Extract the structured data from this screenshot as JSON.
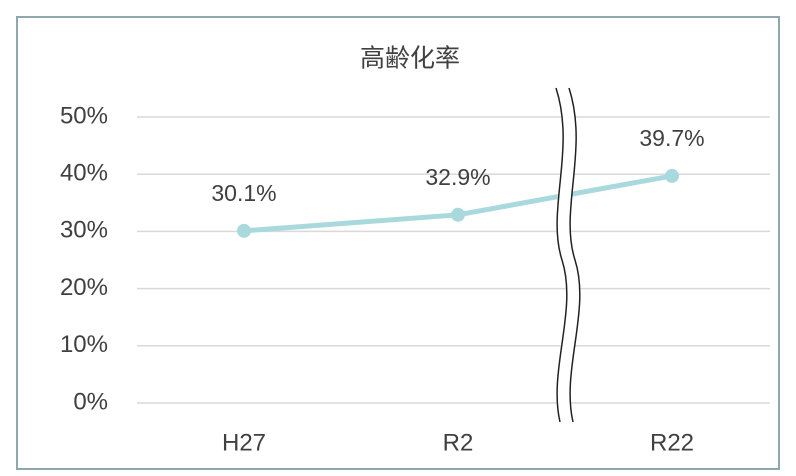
{
  "chart_data": {
    "type": "line",
    "title": "高齢化率",
    "categories": [
      "H27",
      "R2",
      "R22"
    ],
    "series": [
      {
        "name": "高齢化率",
        "color": "#a9d9dc",
        "values": [
          30.1,
          32.9,
          39.7
        ],
        "value_labels": [
          "30.1%",
          "32.9%",
          "39.7%"
        ]
      }
    ],
    "ylim": [
      0,
      50
    ],
    "yticks": [
      {
        "value": 0,
        "label": "0%"
      },
      {
        "value": 10,
        "label": "10%"
      },
      {
        "value": 20,
        "label": "20%"
      },
      {
        "value": 30,
        "label": "30%"
      },
      {
        "value": 40,
        "label": "40%"
      },
      {
        "value": 50,
        "label": "50%"
      }
    ],
    "grid": true
  }
}
